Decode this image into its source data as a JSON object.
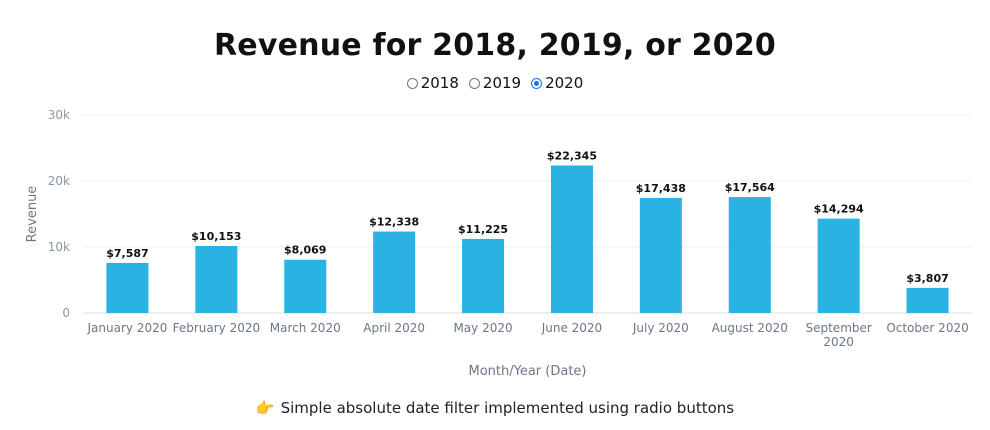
{
  "title": "Revenue for 2018, 2019, or 2020",
  "filter": {
    "options": [
      {
        "label": "2018",
        "checked": false
      },
      {
        "label": "2019",
        "checked": false
      },
      {
        "label": "2020",
        "checked": true
      }
    ]
  },
  "caption": {
    "icon": "hand-pointing-right-icon",
    "icon_glyph": "👉",
    "text": "Simple absolute date filter implemented using radio buttons"
  },
  "chart_data": {
    "type": "bar",
    "title": "Revenue for 2018, 2019, or 2020",
    "xlabel": "Month/Year (Date)",
    "ylabel": "Revenue",
    "ylim": [
      0,
      30000
    ],
    "yticks": [
      {
        "value": 0,
        "label": "0"
      },
      {
        "value": 10000,
        "label": "10k"
      },
      {
        "value": 20000,
        "label": "20k"
      },
      {
        "value": 30000,
        "label": "30k"
      }
    ],
    "grid": true,
    "bar_color": "#29b2e2",
    "categories": [
      "January 2020",
      "February 2020",
      "March 2020",
      "April 2020",
      "May 2020",
      "June 2020",
      "July 2020",
      "August 2020",
      "September 2020",
      "October 2020"
    ],
    "category_lines": [
      [
        "January 2020"
      ],
      [
        "February 2020"
      ],
      [
        "March 2020"
      ],
      [
        "April 2020"
      ],
      [
        "May 2020"
      ],
      [
        "June 2020"
      ],
      [
        "July 2020"
      ],
      [
        "August 2020"
      ],
      [
        "September",
        "2020"
      ],
      [
        "October 2020"
      ]
    ],
    "values": [
      7587,
      10153,
      8069,
      12338,
      11225,
      22345,
      17438,
      17564,
      14294,
      3807
    ],
    "data_labels": [
      "$7,587",
      "$10,153",
      "$8,069",
      "$12,338",
      "$11,225",
      "$22,345",
      "$17,438",
      "$17,564",
      "$14,294",
      "$3,807"
    ]
  }
}
